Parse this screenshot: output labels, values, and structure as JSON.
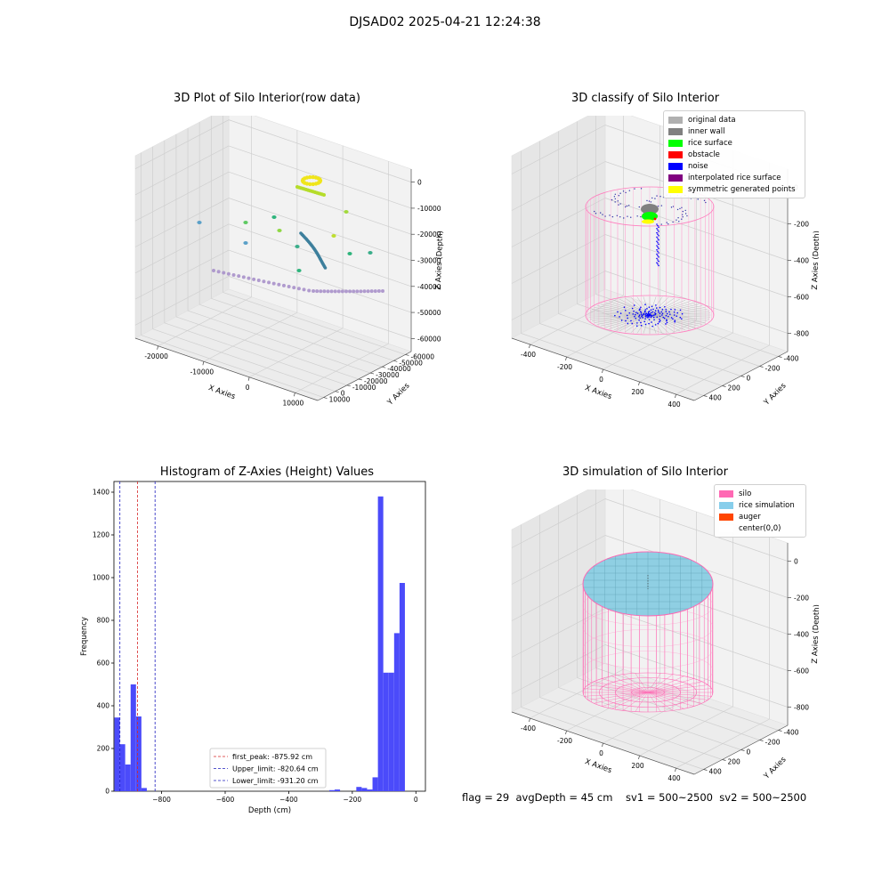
{
  "suptitle": "DJSAD02 2025-04-21 12:24:38",
  "footer": "flag = 29  avgDepth = 45 cm    sv1 = 500~2500  sv2 = 500~2500",
  "chart_data": [
    {
      "type": "scatter",
      "title": "3D Plot of Silo Interior(row data)",
      "xlabel": "X Axies",
      "ylabel": "Y Axies",
      "zlabel": "Z Axies (Depth)",
      "xticks": [
        "-20000",
        "-10000",
        "0",
        "10000"
      ],
      "yticks": [
        "10000",
        "0",
        "-10000",
        "-20000",
        "-30000",
        "-40000",
        "-50000",
        "-60000"
      ],
      "zticks": [
        "0",
        "-10000",
        "-20000",
        "-30000",
        "-40000",
        "-50000",
        "-60000"
      ],
      "xlim": [
        -25000,
        15000
      ],
      "ylim": [
        -60000,
        10000
      ],
      "zlim": [
        -65000,
        0
      ],
      "colormap": "viridis"
    },
    {
      "type": "scatter",
      "title": "3D classify of Silo Interior",
      "xlabel": "X Axies",
      "ylabel": "Y Axies",
      "zlabel": "Z Axies (Depth)",
      "xticks": [
        "-400",
        "-200",
        "0",
        "200",
        "400"
      ],
      "yticks": [
        "400",
        "200",
        "0",
        "-200",
        "-400"
      ],
      "zticks": [
        "0",
        "-200",
        "-400",
        "-600",
        "-800"
      ],
      "xlim": [
        -500,
        500
      ],
      "ylim": [
        -500,
        500
      ],
      "zlim": [
        -950,
        0
      ],
      "legend": [
        {
          "label": "original data",
          "color": "#b0b0b0"
        },
        {
          "label": "inner wall",
          "color": "#808080"
        },
        {
          "label": "rice surface",
          "color": "#00ff00"
        },
        {
          "label": "obstacle",
          "color": "#ff0000"
        },
        {
          "label": "noise",
          "color": "#0000ff"
        },
        {
          "label": "interpolated rice surface",
          "color": "#800080"
        },
        {
          "label": "symmetric generated points",
          "color": "#ffff00"
        }
      ],
      "legend_position": "top-right"
    },
    {
      "type": "bar",
      "title": "Histogram of Z-Axies (Height) Values",
      "xlabel": "Depth (cm)",
      "ylabel": "Frequency",
      "xlim": [
        -950,
        30
      ],
      "ylim": [
        0,
        1450
      ],
      "xticks": [
        -800,
        -600,
        -400,
        -200,
        0
      ],
      "yticks": [
        0,
        200,
        400,
        600,
        800,
        1000,
        1200,
        1400
      ],
      "bin_width": 16.9,
      "bins": [
        {
          "x": -940,
          "count": 345
        },
        {
          "x": -923,
          "count": 220
        },
        {
          "x": -906,
          "count": 125
        },
        {
          "x": -889,
          "count": 500
        },
        {
          "x": -872,
          "count": 350
        },
        {
          "x": -855,
          "count": 15
        },
        {
          "x": -264,
          "count": 5
        },
        {
          "x": -247,
          "count": 8
        },
        {
          "x": -179,
          "count": 20
        },
        {
          "x": -162,
          "count": 15
        },
        {
          "x": -145,
          "count": 8
        },
        {
          "x": -128,
          "count": 65
        },
        {
          "x": -111,
          "count": 1380
        },
        {
          "x": -94,
          "count": 555
        },
        {
          "x": -77,
          "count": 555
        },
        {
          "x": -60,
          "count": 740
        },
        {
          "x": -43,
          "count": 975
        }
      ],
      "bar_color": "#4b4bfa",
      "vlines": [
        {
          "x": -875.92,
          "color": "#d62728",
          "label": "first_peak: -875.92 cm"
        },
        {
          "x": -820.64,
          "color": "#1f1fbf",
          "label": "Upper_limit: -820.64 cm"
        },
        {
          "x": -931.2,
          "color": "#1f1fbf",
          "label": "Lower_limit: -931.20 cm"
        }
      ],
      "legend_position": "lower center"
    },
    {
      "type": "surface",
      "title": "3D simulation of Silo Interior",
      "xlabel": "X Axies",
      "ylabel": "Y Axies",
      "zlabel": "Z Axies (Depth)",
      "xticks": [
        "-400",
        "-200",
        "0",
        "200",
        "400"
      ],
      "yticks": [
        "400",
        "200",
        "0",
        "-200",
        "-400"
      ],
      "zticks": [
        "0",
        "-200",
        "-400",
        "-600",
        "-800"
      ],
      "xlim": [
        -500,
        500
      ],
      "ylim": [
        -500,
        500
      ],
      "zlim": [
        -900,
        100
      ],
      "legend": [
        {
          "label": "silo",
          "color": "#ff69b4"
        },
        {
          "label": "rice simulation",
          "color": "#87ceeb"
        },
        {
          "label": "auger",
          "color": "#ff4500"
        },
        {
          "label": "center(0,0)",
          "color": "#ffffff"
        }
      ],
      "legend_position": "top-right"
    }
  ]
}
